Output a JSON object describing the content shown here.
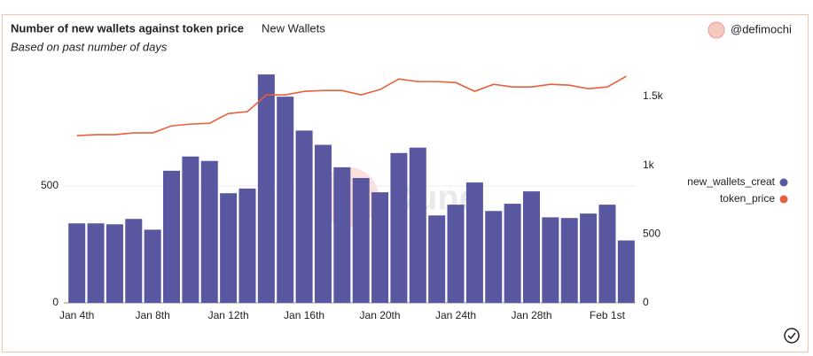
{
  "chart_data": {
    "type": "bar-line",
    "title": "Number of new wallets against token price",
    "subtitle_tab": "New Wallets",
    "subtitle": "Based on past number of days",
    "author": "@defimochi",
    "watermark": "Dune",
    "categories": [
      "Jan 4th",
      null,
      null,
      null,
      "Jan 8th",
      null,
      null,
      null,
      "Jan 12th",
      null,
      null,
      null,
      "Jan 16th",
      null,
      null,
      null,
      "Jan 20th",
      null,
      null,
      null,
      "Jan 24th",
      null,
      null,
      null,
      "Jan 28th",
      null,
      null,
      null,
      "Feb 1st",
      null
    ],
    "series": [
      {
        "name": "new_wallets_creat",
        "type": "bar",
        "color": "#5a57a1",
        "values": [
          340,
          340,
          336,
          359,
          313,
          565,
          626,
          607,
          469,
          489,
          977,
          882,
          737,
          676,
          580,
          534,
          473,
          641,
          664,
          374,
          420,
          515,
          393,
          424,
          477,
          366,
          363,
          382,
          420,
          267
        ]
      },
      {
        "name": "token_price",
        "type": "line",
        "color": "#e8603c",
        "axis": "y2",
        "values": [
          1216,
          1223,
          1223,
          1236,
          1236,
          1287,
          1300,
          1306,
          1377,
          1390,
          1512,
          1512,
          1538,
          1544,
          1544,
          1512,
          1551,
          1628,
          1609,
          1609,
          1602,
          1538,
          1589,
          1570,
          1570,
          1589,
          1583,
          1557,
          1570,
          1647
        ]
      }
    ],
    "ylim": [
      0,
      1000
    ],
    "yticks": [
      0,
      500
    ],
    "y2lim": [
      0,
      1700
    ],
    "y2ticks": [
      0,
      500,
      {
        "value": 1000,
        "label": "1k"
      },
      {
        "value": 1500,
        "label": "1.5k"
      }
    ],
    "grid": true,
    "legend": "right"
  }
}
